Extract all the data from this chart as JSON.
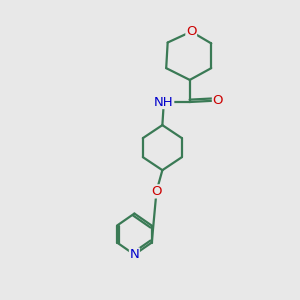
{
  "background_color": "#e8e8e8",
  "bond_color": "#3a7a55",
  "N_color": "#0000cc",
  "O_color": "#cc0000",
  "line_width": 1.6,
  "font_size_atom": 9.5,
  "fig_size": [
    3.0,
    3.0
  ],
  "dpi": 100,
  "xlim": [
    0,
    10
  ],
  "ylim": [
    0,
    10
  ]
}
